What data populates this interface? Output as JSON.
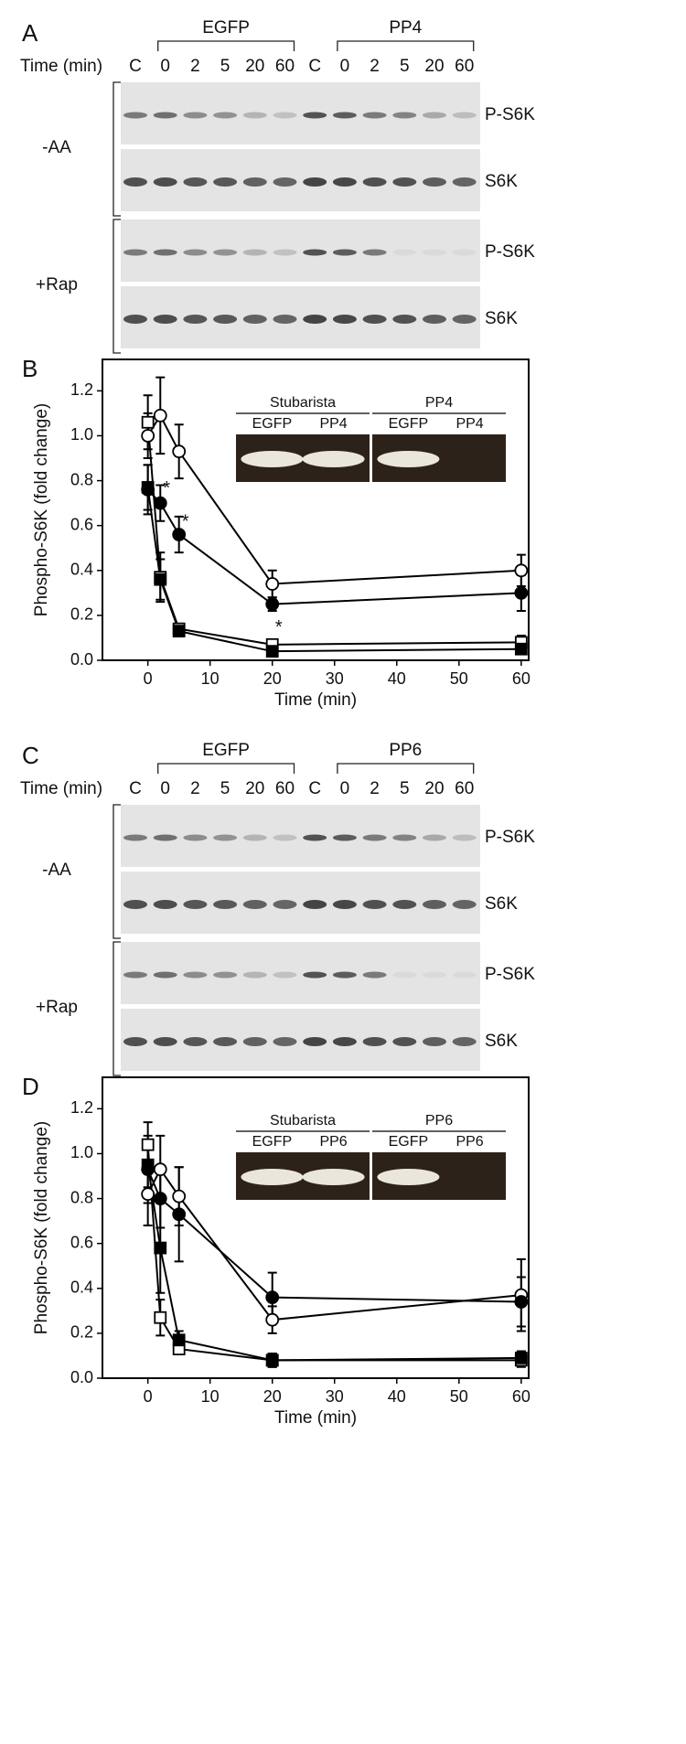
{
  "panels": [
    {
      "label": "A",
      "groups": [
        "EGFP",
        "PP4"
      ],
      "time_label": "Time (min)",
      "lanes": [
        "C",
        "0",
        "2",
        "5",
        "20",
        "60",
        "C",
        "0",
        "2",
        "5",
        "20",
        "60"
      ],
      "conditions": [
        {
          "label": "-AA",
          "rows": [
            "P-S6K",
            "S6K"
          ]
        },
        {
          "label": "+Rap",
          "rows": [
            "P-S6K",
            "S6K"
          ]
        }
      ]
    },
    {
      "label": "C",
      "groups": [
        "EGFP",
        "PP6"
      ],
      "time_label": "Time (min)",
      "lanes": [
        "C",
        "0",
        "2",
        "5",
        "20",
        "60",
        "C",
        "0",
        "2",
        "5",
        "20",
        "60"
      ],
      "conditions": [
        {
          "label": "-AA",
          "rows": [
            "P-S6K",
            "S6K"
          ]
        },
        {
          "label": "+Rap",
          "rows": [
            "P-S6K",
            "S6K"
          ]
        }
      ]
    }
  ],
  "chart_data": [
    {
      "type": "line",
      "label": "B",
      "x_label": "Time (min)",
      "y_label": "Phospho-S6K (fold change)",
      "x": [
        0,
        2,
        5,
        20,
        60
      ],
      "xlim": [
        -7.3,
        61.2
      ],
      "xticks": [
        0,
        10,
        20,
        30,
        40,
        50,
        60
      ],
      "ylim": [
        0,
        1.34
      ],
      "yticks": [
        {
          "value": 0,
          "label": "0.0"
        },
        0.2,
        0.4,
        0.6,
        0.8,
        {
          "value": 1,
          "label": "1.0"
        },
        1.2
      ],
      "series": [
        {
          "color": "#000000",
          "fill": "#ffffff",
          "marker": "circle",
          "values": [
            1.0,
            1.09,
            0.93,
            0.34,
            0.4
          ],
          "errors": [
            0.1,
            0.17,
            0.12,
            0.06,
            0.07
          ]
        },
        {
          "color": "#000000",
          "fill": "#000000",
          "marker": "circle",
          "values": [
            0.76,
            0.7,
            0.56,
            0.25,
            0.3
          ],
          "errors": [
            0.11,
            0.08,
            0.08,
            0.03,
            0.08
          ]
        },
        {
          "color": "#000000",
          "fill": "#ffffff",
          "marker": "square",
          "values": [
            1.06,
            0.37,
            0.14,
            0.07,
            0.08
          ],
          "errors": [
            0.12,
            0.11,
            0.02,
            0.02,
            0.03
          ]
        },
        {
          "color": "#000000",
          "fill": "#000000",
          "marker": "square",
          "values": [
            0.77,
            0.36,
            0.13,
            0.04,
            0.05
          ],
          "errors": [
            0.1,
            0.09,
            0.02,
            0.02,
            0.02
          ]
        }
      ],
      "annotations": [
        {
          "text": "*",
          "x": 2,
          "y": 0.78
        },
        {
          "text": "*",
          "x": 5,
          "y": 0.63
        },
        {
          "text": "*",
          "x": 20,
          "y": 0.16
        }
      ],
      "inset": [
        {
          "label": "Stubarista",
          "lanes": [
            "EGFP",
            "PP4"
          ]
        },
        {
          "label": "PP4",
          "lanes": [
            "EGFP",
            "PP4"
          ]
        }
      ]
    },
    {
      "type": "line",
      "label": "D",
      "x_label": "Time (min)",
      "y_label": "Phospho-S6K (fold change)",
      "x": [
        0,
        2,
        5,
        20,
        60
      ],
      "xlim": [
        -7.3,
        61.2
      ],
      "xticks": [
        0,
        10,
        20,
        30,
        40,
        50,
        60
      ],
      "ylim": [
        0,
        1.34
      ],
      "yticks": [
        {
          "value": 0,
          "label": "0.0"
        },
        0.2,
        0.4,
        0.6,
        0.8,
        {
          "value": 1,
          "label": "1.0"
        },
        1.2
      ],
      "series": [
        {
          "color": "#000000",
          "fill": "#ffffff",
          "marker": "circle",
          "values": [
            0.82,
            0.93,
            0.81,
            0.26,
            0.37
          ],
          "errors": [
            0.14,
            0.15,
            0.13,
            0.06,
            0.16
          ]
        },
        {
          "color": "#000000",
          "fill": "#000000",
          "marker": "circle",
          "values": [
            0.93,
            0.8,
            0.73,
            0.36,
            0.34
          ],
          "errors": [
            0.15,
            0.13,
            0.21,
            0.11,
            0.11
          ]
        },
        {
          "color": "#000000",
          "fill": "#ffffff",
          "marker": "square",
          "values": [
            1.04,
            0.27,
            0.13,
            0.08,
            0.08
          ],
          "errors": [
            0.1,
            0.08,
            0.02,
            0.03,
            0.03
          ]
        },
        {
          "color": "#000000",
          "fill": "#000000",
          "marker": "square",
          "values": [
            0.95,
            0.58,
            0.17,
            0.08,
            0.09
          ],
          "errors": [
            0.1,
            0.2,
            0.04,
            0.03,
            0.03
          ]
        }
      ],
      "annotations": [],
      "inset": [
        {
          "label": "Stubarista",
          "lanes": [
            "EGFP",
            "PP6"
          ]
        },
        {
          "label": "PP6",
          "lanes": [
            "EGFP",
            "PP6"
          ]
        }
      ]
    }
  ]
}
